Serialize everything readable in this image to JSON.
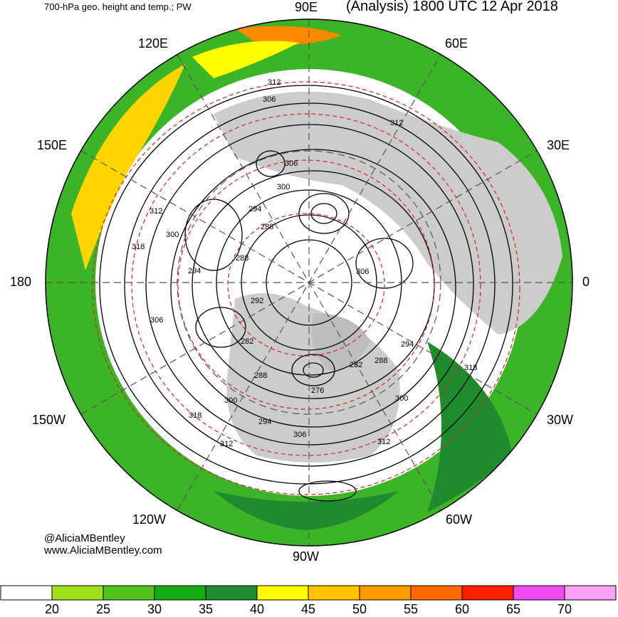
{
  "header": {
    "left_title": "700-hPa geo. height and temp.; PW",
    "right_title": "(Analysis) 1800 UTC 12 Apr 2018"
  },
  "longitude_labels": {
    "n90e": "90E",
    "n60e": "60E",
    "n120e": "120E",
    "n150e": "150E",
    "n30e": "30E",
    "n180": "180",
    "n0": "0",
    "n150w": "150W",
    "n30w": "30W",
    "n120w": "120W",
    "n60w": "60W",
    "n90w": "90W"
  },
  "contour_labels": [
    "312",
    "306",
    "312",
    "306",
    "300",
    "294",
    "288",
    "288",
    "312",
    "300",
    "318",
    "294",
    "306",
    "306",
    "282",
    "292",
    "288",
    "282",
    "288",
    "276",
    "294",
    "318",
    "300",
    "300",
    "318",
    "312",
    "294",
    "306",
    "312"
  ],
  "credits": {
    "author": "@AliciaMBentley",
    "website": "www.AliciaMBentley.com"
  },
  "colorbar": {
    "ticks": [
      "20",
      "25",
      "30",
      "35",
      "40",
      "45",
      "50",
      "55",
      "60",
      "65",
      "70"
    ],
    "colors": [
      "#ffffff",
      "#a0e01e",
      "#50c31c",
      "#17aa17",
      "#1f8a2e",
      "#ffff00",
      "#ffc400",
      "#ff9a00",
      "#ff6a00",
      "#ff1e00",
      "#ee4cf0",
      "#f9a2f5"
    ]
  }
}
